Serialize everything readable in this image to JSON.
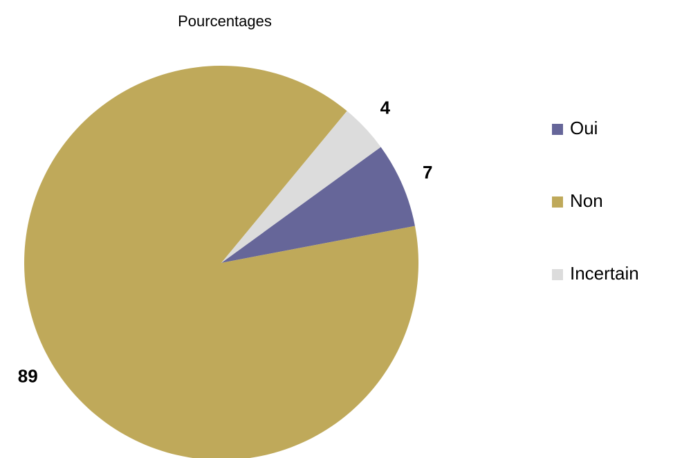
{
  "chart_data": {
    "type": "pie",
    "title": "Pourcentages",
    "categories": [
      "Oui",
      "Non",
      "Incertain"
    ],
    "values": [
      7,
      89,
      4
    ],
    "colors": [
      "#666699",
      "#bfa95a",
      "#dcdcdc"
    ],
    "legend": "right"
  }
}
